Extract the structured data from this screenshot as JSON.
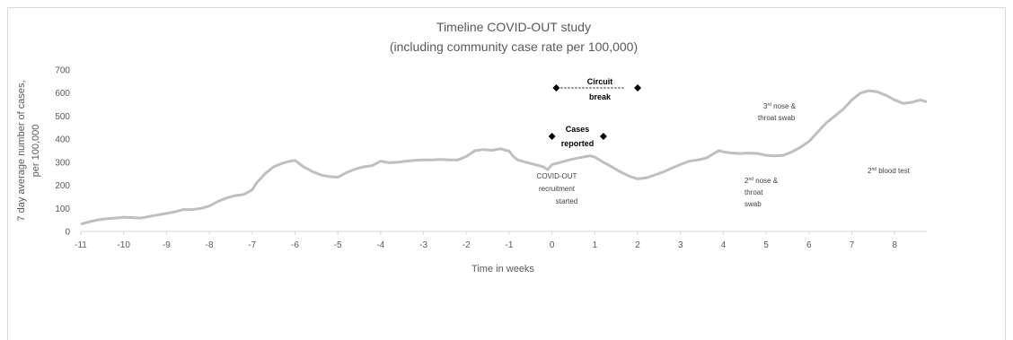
{
  "colors": {
    "series": "#bfbfbf",
    "axis": "#d9d9d9",
    "text": "#595959",
    "marker": "#000000"
  },
  "chart_data": {
    "type": "line",
    "title": "Timeline COVID-OUT study",
    "subtitle": "(including community case rate per 100,000)",
    "xlabel": "Time in weeks",
    "ylabel_line1": "7 day average number of cases,",
    "ylabel_line2": "per 100,000",
    "xlim": [
      -11,
      8.75
    ],
    "ylim": [
      0,
      700
    ],
    "xticks": [
      "-11",
      "-10",
      "-9",
      "-8",
      "-7",
      "-6",
      "-5",
      "-4",
      "-3",
      "-2",
      "-1",
      "0",
      "1",
      "2",
      "3",
      "4",
      "5",
      "6",
      "7",
      "8"
    ],
    "yticks": [
      "0",
      "100",
      "200",
      "300",
      "400",
      "500",
      "600",
      "700"
    ],
    "grid": false,
    "series": [
      {
        "values": [
          [
            -11,
            32
          ],
          [
            -10.8,
            42
          ],
          [
            -10.6,
            50
          ],
          [
            -10.4,
            55
          ],
          [
            -10.2,
            58
          ],
          [
            -10,
            62
          ],
          [
            -9.8,
            60
          ],
          [
            -9.6,
            58
          ],
          [
            -9.4,
            65
          ],
          [
            -9.2,
            72
          ],
          [
            -9,
            78
          ],
          [
            -8.8,
            85
          ],
          [
            -8.6,
            95
          ],
          [
            -8.4,
            95
          ],
          [
            -8.2,
            100
          ],
          [
            -8,
            110
          ],
          [
            -7.8,
            130
          ],
          [
            -7.6,
            145
          ],
          [
            -7.4,
            155
          ],
          [
            -7.2,
            160
          ],
          [
            -7,
            180
          ],
          [
            -6.9,
            210
          ],
          [
            -6.7,
            250
          ],
          [
            -6.5,
            280
          ],
          [
            -6.3,
            295
          ],
          [
            -6.1,
            305
          ],
          [
            -6,
            308
          ],
          [
            -5.8,
            280
          ],
          [
            -5.6,
            260
          ],
          [
            -5.4,
            245
          ],
          [
            -5.2,
            238
          ],
          [
            -5,
            235
          ],
          [
            -4.8,
            255
          ],
          [
            -4.6,
            270
          ],
          [
            -4.4,
            280
          ],
          [
            -4.2,
            285
          ],
          [
            -4,
            305
          ],
          [
            -3.8,
            298
          ],
          [
            -3.6,
            300
          ],
          [
            -3.4,
            305
          ],
          [
            -3.2,
            308
          ],
          [
            -3,
            310
          ],
          [
            -2.8,
            310
          ],
          [
            -2.6,
            312
          ],
          [
            -2.4,
            310
          ],
          [
            -2.2,
            310
          ],
          [
            -2,
            325
          ],
          [
            -1.8,
            350
          ],
          [
            -1.6,
            355
          ],
          [
            -1.4,
            352
          ],
          [
            -1.2,
            358
          ],
          [
            -1,
            348
          ],
          [
            -0.9,
            325
          ],
          [
            -0.8,
            310
          ],
          [
            -0.6,
            300
          ],
          [
            -0.4,
            290
          ],
          [
            -0.2,
            280
          ],
          [
            -0.1,
            268
          ],
          [
            0,
            290
          ],
          [
            0.2,
            300
          ],
          [
            0.4,
            310
          ],
          [
            0.6,
            318
          ],
          [
            0.8,
            325
          ],
          [
            0.9,
            328
          ],
          [
            1,
            322
          ],
          [
            1.2,
            300
          ],
          [
            1.4,
            280
          ],
          [
            1.6,
            258
          ],
          [
            1.8,
            240
          ],
          [
            2,
            228
          ],
          [
            2.2,
            232
          ],
          [
            2.4,
            245
          ],
          [
            2.6,
            258
          ],
          [
            2.8,
            275
          ],
          [
            3,
            290
          ],
          [
            3.2,
            305
          ],
          [
            3.4,
            310
          ],
          [
            3.6,
            318
          ],
          [
            3.8,
            340
          ],
          [
            3.9,
            350
          ],
          [
            4,
            345
          ],
          [
            4.2,
            340
          ],
          [
            4.4,
            338
          ],
          [
            4.6,
            340
          ],
          [
            4.8,
            338
          ],
          [
            5,
            330
          ],
          [
            5.2,
            328
          ],
          [
            5.4,
            330
          ],
          [
            5.6,
            345
          ],
          [
            5.8,
            365
          ],
          [
            6,
            390
          ],
          [
            6.2,
            430
          ],
          [
            6.4,
            470
          ],
          [
            6.6,
            500
          ],
          [
            6.8,
            530
          ],
          [
            7,
            570
          ],
          [
            7.2,
            600
          ],
          [
            7.4,
            610
          ],
          [
            7.6,
            605
          ],
          [
            7.8,
            590
          ],
          [
            8,
            570
          ],
          [
            8.2,
            555
          ],
          [
            8.4,
            560
          ],
          [
            8.6,
            570
          ],
          [
            8.75,
            562
          ]
        ]
      }
    ],
    "annotations": {
      "circuit_break_1": "Circuit",
      "circuit_break_2": "break",
      "circuit_break_markers": [
        [
          0.1,
          622
        ],
        [
          2,
          622
        ]
      ],
      "cases_reported_1": "Cases",
      "cases_reported_2": "reported",
      "cases_reported_markers": [
        [
          0,
          412
        ],
        [
          1.2,
          412
        ]
      ],
      "recruitment_1": "COVID-OUT",
      "recruitment_2": "recruitment",
      "recruitment_3": "started",
      "swab3_num": "3",
      "swab3_sup": "rd",
      "swab3_rest": " nose &",
      "swab3_line2": "throat swab",
      "swab2_num": "2",
      "swab2_sup": "nd",
      "swab2_rest": " nose &",
      "swab2_line2": "throat",
      "swab2_line3": "swab",
      "blood2_num": "2",
      "blood2_sup": "nd",
      "blood2_rest": " blood test"
    }
  }
}
